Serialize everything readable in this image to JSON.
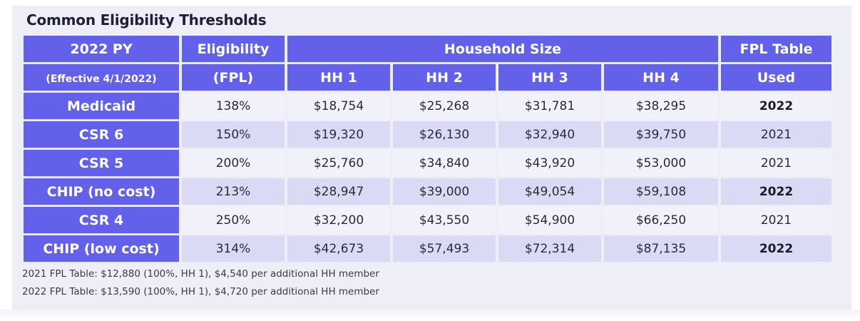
{
  "title": "Common Eligibility Thresholds",
  "header": {
    "py_label": "2022 PY",
    "py_sub": "(Effective 4/1/2022)",
    "eligibility_label": "Eligibility",
    "eligibility_sub": "(FPL)",
    "household_size": "Household Size",
    "fpl_table_label": "FPL Table",
    "fpl_table_sub": "Used",
    "hh": [
      "HH 1",
      "HH 2",
      "HH 3",
      "HH 4"
    ]
  },
  "rows": [
    {
      "program": "Medicaid",
      "fpl": "138%",
      "hh1": "$18,754",
      "hh2": "$25,268",
      "hh3": "$31,781",
      "hh4": "$38,295",
      "table": "2022"
    },
    {
      "program": "CSR 6",
      "fpl": "150%",
      "hh1": "$19,320",
      "hh2": "$26,130",
      "hh3": "$32,940",
      "hh4": "$39,750",
      "table": "2021"
    },
    {
      "program": "CSR 5",
      "fpl": "200%",
      "hh1": "$25,760",
      "hh2": "$34,840",
      "hh3": "$43,920",
      "hh4": "$53,000",
      "table": "2021"
    },
    {
      "program": "CHIP (no cost)",
      "fpl": "213%",
      "hh1": "$28,947",
      "hh2": "$39,000",
      "hh3": "$49,054",
      "hh4": "$59,108",
      "table": "2022"
    },
    {
      "program": "CSR 4",
      "fpl": "250%",
      "hh1": "$32,200",
      "hh2": "$43,550",
      "hh3": "$54,900",
      "hh4": "$66,250",
      "table": "2021"
    },
    {
      "program": "CHIP (low cost)",
      "fpl": "314%",
      "hh1": "$42,673",
      "hh2": "$57,493",
      "hh3": "$72,314",
      "hh4": "$87,135",
      "table": "2022"
    }
  ],
  "notes": [
    "2021 FPL Table:  $12,880 (100%, HH 1), $4,540 per additional HH member",
    "2022 FPL Table:  $13,590 (100%, HH 1), $4,720 per additional HH member"
  ]
}
